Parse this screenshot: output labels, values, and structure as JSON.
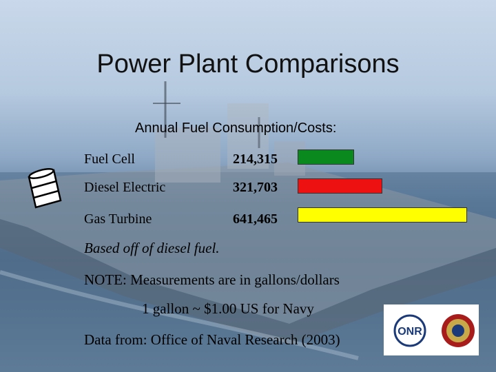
{
  "slide": {
    "title": "Power Plant Comparisons",
    "subtitle": "Annual Fuel Consumption/Costs:",
    "notes": {
      "based_on": "Based off of diesel fuel.",
      "measurement": "NOTE:  Measurements are in gallons/dollars",
      "conversion": "1 gallon ~ $1.00 US for Navy",
      "source": "Data from:  Office of Naval Research (2003)"
    },
    "logo_text": "ONR"
  },
  "chart_data": {
    "type": "bar",
    "orientation": "horizontal",
    "title": "Annual Fuel Consumption/Costs:",
    "categories": [
      "Fuel Cell",
      "Diesel Electric",
      "Gas Turbine"
    ],
    "value_labels": [
      "214,315",
      "321,703",
      "641,465"
    ],
    "values": [
      214315,
      321703,
      641465
    ],
    "colors": [
      "#0a8a1e",
      "#ee1111",
      "#ffff00"
    ],
    "xlim": [
      0,
      641465
    ],
    "grid": false,
    "legend": "none"
  }
}
